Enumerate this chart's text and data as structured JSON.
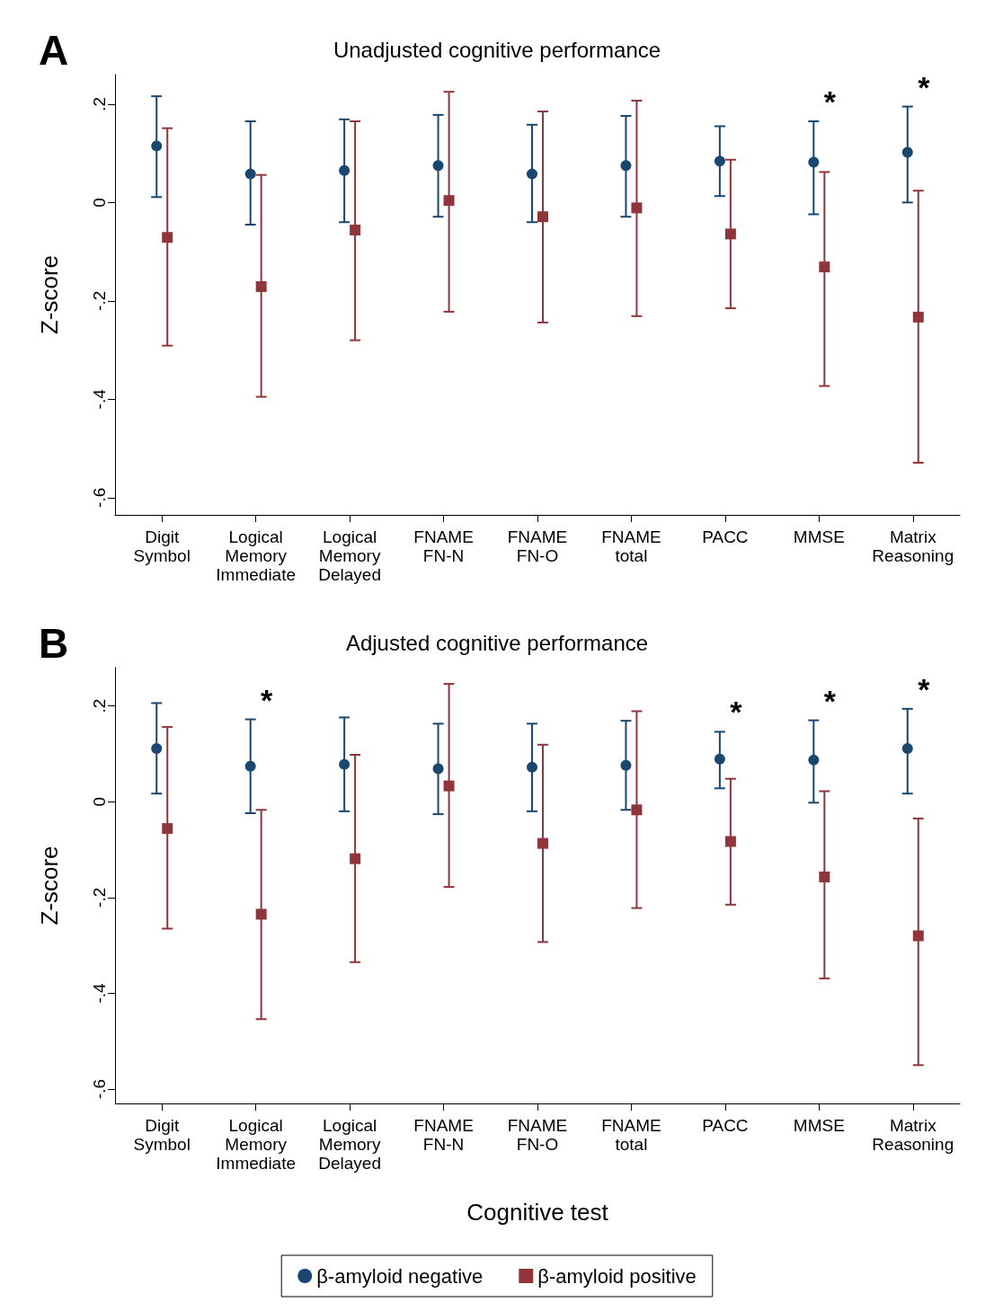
{
  "chart_data": [
    {
      "type": "scatter",
      "title": "Unadjusted cognitive performance",
      "ylabel": "Z-score",
      "annotations": [
        "A"
      ],
      "categories": [
        "Digit\nSymbol",
        "Logical\nMemory\nImmediate",
        "Logical\nMemory\nDelayed",
        "FNAME\nFN-N",
        "FNAME\nFN-O",
        "FNAME\ntotal",
        "PACC",
        "MMSE",
        "Matrix\nReasoning"
      ],
      "ylim": [
        -0.635,
        0.26
      ],
      "yticks": [
        {
          "value": -0.6,
          "label": "-.6"
        },
        {
          "value": -0.4,
          "label": "-.4"
        },
        {
          "value": -0.2,
          "label": "-.2"
        },
        0,
        {
          "value": 0.2,
          "label": ".2"
        }
      ],
      "grid": false,
      "series": [
        {
          "color": "#1a476f",
          "marker": "circle",
          "value_labels": [
            null,
            null,
            null,
            null,
            null,
            null,
            null,
            "*",
            "*"
          ],
          "values": [
            0.115,
            0.058,
            0.065,
            0.075,
            0.058,
            0.075,
            0.084,
            0.082,
            0.102
          ],
          "errors": [
            [
              0.011,
              0.216
            ],
            [
              -0.045,
              0.165
            ],
            [
              -0.04,
              0.169
            ],
            [
              -0.029,
              0.178
            ],
            [
              -0.04,
              0.158
            ],
            [
              -0.029,
              0.176
            ],
            [
              0.013,
              0.155
            ],
            [
              -0.024,
              0.165
            ],
            [
              0.0,
              0.195
            ]
          ]
        },
        {
          "color": "#90353b",
          "marker": "square",
          "values": [
            -0.071,
            -0.171,
            -0.056,
            0.004,
            -0.029,
            -0.011,
            -0.064,
            -0.131,
            -0.233
          ],
          "errors": [
            [
              -0.291,
              0.151
            ],
            [
              -0.395,
              0.056
            ],
            [
              -0.28,
              0.165
            ],
            [
              -0.222,
              0.225
            ],
            [
              -0.244,
              0.185
            ],
            [
              -0.231,
              0.207
            ],
            [
              -0.215,
              0.087
            ],
            [
              -0.373,
              0.062
            ],
            [
              -0.529,
              0.024
            ]
          ]
        }
      ]
    },
    {
      "type": "scatter",
      "title": "Adjusted cognitive performance",
      "ylabel": "Z-score",
      "xlabel": "Cognitive test",
      "annotations": [
        "B"
      ],
      "categories": [
        "Digit\nSymbol",
        "Logical\nMemory\nImmediate",
        "Logical\nMemory\nDelayed",
        "FNAME\nFN-N",
        "FNAME\nFN-O",
        "FNAME\ntotal",
        "PACC",
        "MMSE",
        "Matrix\nReasoning"
      ],
      "ylim": [
        -0.63,
        0.28
      ],
      "yticks": [
        {
          "value": -0.6,
          "label": "-.6"
        },
        {
          "value": -0.4,
          "label": "-.4"
        },
        {
          "value": -0.2,
          "label": "-.2"
        },
        0,
        {
          "value": 0.2,
          "label": ".2"
        }
      ],
      "grid": false,
      "legend": "bottom",
      "series": [
        {
          "name": "β-amyloid negative",
          "color": "#1a476f",
          "marker": "circle",
          "value_labels": [
            null,
            "*",
            null,
            null,
            null,
            null,
            "*",
            "*",
            "*"
          ],
          "values": [
            0.111,
            0.074,
            0.078,
            0.069,
            0.072,
            0.076,
            0.089,
            0.087,
            0.111
          ],
          "errors": [
            [
              0.017,
              0.206
            ],
            [
              -0.024,
              0.172
            ],
            [
              -0.02,
              0.176
            ],
            [
              -0.026,
              0.163
            ],
            [
              -0.02,
              0.163
            ],
            [
              -0.017,
              0.169
            ],
            [
              0.028,
              0.146
            ],
            [
              -0.002,
              0.17
            ],
            [
              0.017,
              0.194
            ]
          ]
        },
        {
          "name": "β-amyloid positive",
          "color": "#90353b",
          "marker": "square",
          "values": [
            -0.056,
            -0.235,
            -0.119,
            0.033,
            -0.087,
            -0.017,
            -0.083,
            -0.157,
            -0.28
          ],
          "errors": [
            [
              -0.265,
              0.156
            ],
            [
              -0.454,
              -0.017
            ],
            [
              -0.335,
              0.098
            ],
            [
              -0.178,
              0.246
            ],
            [
              -0.293,
              0.119
            ],
            [
              -0.222,
              0.189
            ],
            [
              -0.215,
              0.048
            ],
            [
              -0.369,
              0.022
            ],
            [
              -0.55,
              -0.035
            ]
          ]
        }
      ]
    }
  ]
}
